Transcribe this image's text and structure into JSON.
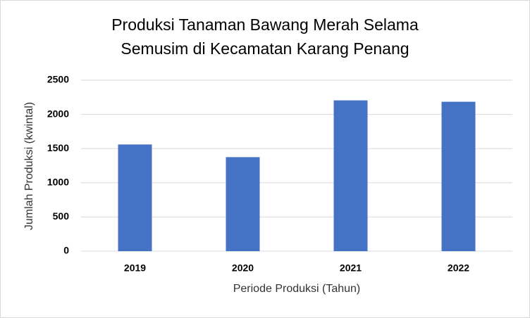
{
  "chart_data": {
    "type": "bar",
    "title": [
      "Produksi Tanaman Bawang Merah Selama",
      "Semusim di Kecamatan Karang Penang"
    ],
    "xlabel": "Periode Produksi (Tahun)",
    "ylabel": "Jumlah Produksi (kwintal)",
    "categories": [
      "2019",
      "2020",
      "2021",
      "2022"
    ],
    "values": [
      1560,
      1375,
      2205,
      2185
    ],
    "color": "#4472c4",
    "ylim": [
      0,
      2500
    ],
    "yticks": [
      0,
      500,
      1000,
      1500,
      2000,
      2500
    ],
    "grid": true
  }
}
